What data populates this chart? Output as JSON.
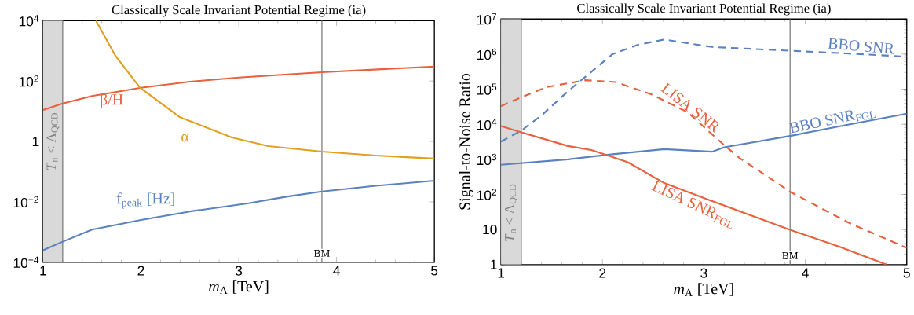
{
  "chart_data": [
    {
      "type": "line",
      "title": "Classically Scale Invariant Potential Regime (ia)",
      "xlabel": "*m*$_{A}$ [TeV]",
      "log": "y",
      "xlim": [
        1,
        5
      ],
      "xticks": [
        1,
        2,
        3,
        4,
        5
      ],
      "ylim": [
        0.0001,
        10000
      ],
      "yticks": [
        {
          "value": 0.0001,
          "label": "10$^{−4}$"
        },
        {
          "value": 0.01,
          "label": "10$^{−2}$"
        },
        1,
        {
          "value": 100,
          "label": "10$^{2}$"
        },
        {
          "value": 10000,
          "label": "10$^{4}$"
        }
      ],
      "series": [
        {
          "name": "β/H",
          "color": "#e8603c",
          "x": [
            1,
            1.2,
            1.5,
            2,
            2.5,
            3,
            3.5,
            3.85,
            4.5,
            5
          ],
          "values": [
            11,
            18,
            32,
            60,
            95,
            130,
            165,
            195,
            250,
            300
          ]
        },
        {
          "name": "α",
          "color": "#e0a020",
          "x": [
            1.54,
            1.74,
            1.99,
            2.4,
            2.93,
            3.3,
            3.85,
            4.4,
            5
          ],
          "values": [
            10000,
            680,
            60,
            6.3,
            1.35,
            0.7,
            0.46,
            0.34,
            0.27
          ]
        },
        {
          "name": "f$_{peak}$ [Hz]",
          "color": "#5b82c0",
          "x": [
            1,
            1.2,
            1.5,
            2,
            2.5,
            3.1,
            3.5,
            3.85,
            4.4,
            5
          ],
          "values": [
            0.00025,
            0.00048,
            0.0012,
            0.0025,
            0.0048,
            0.009,
            0.015,
            0.022,
            0.034,
            0.05
          ]
        }
      ],
      "bands": [
        {
          "axis": "x",
          "from": 1,
          "to": 1.2,
          "label": "*T*$_{n}$ < Λ$_{QCD}$",
          "color": "#d9d9d9"
        }
      ],
      "ref_lines": [
        {
          "axis": "x",
          "value": 1.2,
          "color": "#808080"
        },
        {
          "axis": "x",
          "value": 3.85,
          "label": "BM",
          "color": "#808080"
        }
      ]
    },
    {
      "type": "line",
      "title": "Classically Scale Invariant Potential Regime (ia)",
      "xlabel": "*m*$_{A}$ [TeV]",
      "ylabel": "Signal-to-Noise Ratio",
      "log": "y",
      "xlim": [
        1,
        5
      ],
      "xticks": [
        1,
        2,
        3,
        4,
        5
      ],
      "ylim": [
        1,
        10000000
      ],
      "yticks": [
        1,
        10,
        {
          "value": 100,
          "label": "10$^{2}$"
        },
        {
          "value": 1000,
          "label": "10$^{3}$"
        },
        {
          "value": 10000,
          "label": "10$^{4}$"
        },
        {
          "value": 100000,
          "label": "10$^{5}$"
        },
        {
          "value": 1000000,
          "label": "10$^{6}$"
        },
        {
          "value": 10000000,
          "label": "10$^{7}$"
        }
      ],
      "series": [
        {
          "name": "BBO SNR",
          "color": "#5b82c0",
          "line_style": "dashed",
          "x": [
            1,
            1.2,
            1.4,
            1.66,
            2.1,
            2.35,
            2.61,
            3.08,
            3.85,
            4.4,
            5
          ],
          "values": [
            3200,
            6600,
            18000,
            87000,
            1000000,
            1850000,
            2600000,
            1600000,
            1250000,
            1050000,
            850000
          ]
        },
        {
          "name": "LISA SNR",
          "color": "#e8603c",
          "line_style": "dashed",
          "x": [
            1,
            1.2,
            1.45,
            1.83,
            2.13,
            2.49,
            2.84,
            3.14,
            3.35,
            3.86,
            4.42,
            5
          ],
          "values": [
            33000,
            59000,
            115000,
            180000,
            160000,
            70000,
            22000,
            3600,
            1100,
            115,
            16,
            3
          ]
        },
        {
          "name": "BBO SNR$_{FGL}$",
          "color": "#5b82c0",
          "line_style": "solid",
          "x": [
            1,
            1.66,
            2.1,
            2.61,
            3.08,
            3.2,
            3.86,
            4.4,
            5
          ],
          "values": [
            700,
            1000,
            1400,
            1950,
            1650,
            2200,
            4700,
            9500,
            20000
          ]
        },
        {
          "name": "LISA SNR$_{FGL}$",
          "color": "#e8603c",
          "line_style": "solid",
          "x": [
            1,
            1.2,
            1.66,
            1.89,
            2.25,
            2.61,
            3.05,
            3.86,
            4.33,
            4.8
          ],
          "values": [
            8900,
            5900,
            2400,
            1850,
            830,
            210,
            70,
            9.6,
            3.3,
            1
          ]
        }
      ],
      "bands": [
        {
          "axis": "x",
          "from": 1,
          "to": 1.2,
          "label": "*T*$_{n}$ < Λ$_{QCD}$",
          "color": "#d9d9d9"
        }
      ],
      "ref_lines": [
        {
          "axis": "x",
          "value": 1.2,
          "color": "#808080"
        },
        {
          "axis": "x",
          "value": 3.85,
          "label": "BM",
          "color": "#808080"
        }
      ]
    }
  ]
}
